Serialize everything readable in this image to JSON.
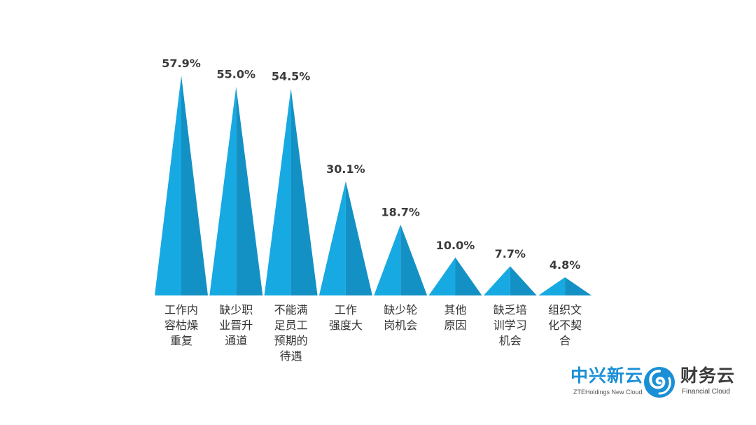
{
  "chart_data": {
    "type": "bar",
    "categories": [
      "工作内容枯燥重复",
      "缺少职业晋升通道",
      "不能满足员工预期的待遇",
      "工作强度大",
      "缺少轮岗机会",
      "其他原因",
      "缺乏培训学习机会",
      "组织文化不契合"
    ],
    "category_lines": [
      [
        "工作内",
        "容枯燥",
        "重复"
      ],
      [
        "缺少职",
        "业晋升",
        "通道"
      ],
      [
        "不能满",
        "足员工",
        "预期的",
        "待遇"
      ],
      [
        "工作",
        "强度大"
      ],
      [
        "缺少轮",
        "岗机会"
      ],
      [
        "其他",
        "原因"
      ],
      [
        "缺乏培",
        "训学习",
        "机会"
      ],
      [
        "组织文",
        "化不契",
        "合"
      ]
    ],
    "values": [
      57.9,
      55.0,
      54.5,
      30.1,
      18.7,
      10.0,
      7.7,
      4.8
    ],
    "value_labels": [
      "57.9%",
      "55.0%",
      "54.5%",
      "30.1%",
      "18.7%",
      "10.0%",
      "7.7%",
      "4.8%"
    ],
    "ylim": [
      0,
      57.9
    ],
    "colors": {
      "bar": "#17a9e2",
      "bar_shade": "#1491c4",
      "label": "#3a3a3a"
    },
    "grid": false,
    "legend": "none"
  },
  "branding": {
    "zte_cn": "中兴新云",
    "zte_en": "ZTEHoldings New Cloud",
    "fc_cn": "财务云",
    "fc_en": "Financial Cloud",
    "logo_icon": "swirl-logo-icon"
  }
}
